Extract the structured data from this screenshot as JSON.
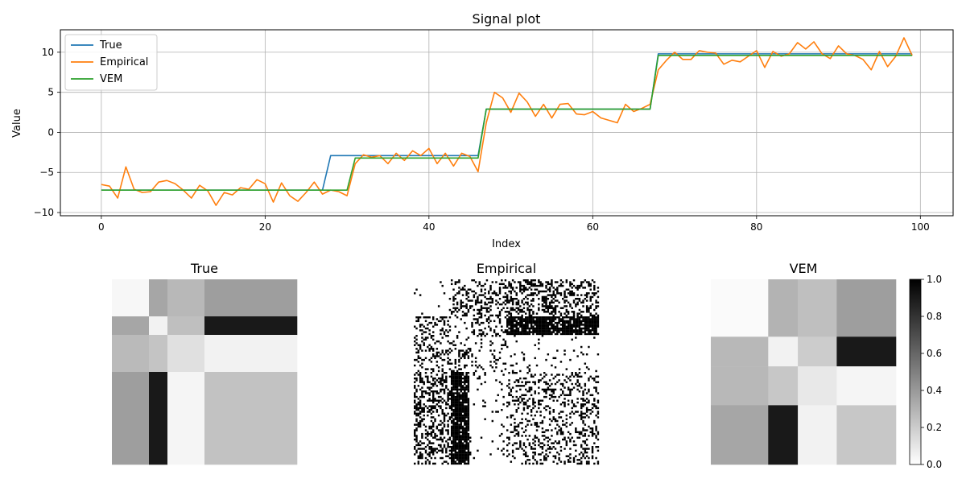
{
  "chart_data": [
    {
      "type": "line",
      "title": "Signal plot",
      "xlabel": "Index",
      "ylabel": "Value",
      "xlim": [
        -5,
        104
      ],
      "ylim": [
        -10.4,
        12.8
      ],
      "xticks": [
        0,
        20,
        40,
        60,
        80,
        100
      ],
      "yticks": [
        -10,
        -5,
        0,
        5,
        10
      ],
      "grid": true,
      "legend_position": "top-left",
      "x": [
        0,
        1,
        2,
        3,
        4,
        5,
        6,
        7,
        8,
        9,
        10,
        11,
        12,
        13,
        14,
        15,
        16,
        17,
        18,
        19,
        20,
        21,
        22,
        23,
        24,
        25,
        26,
        27,
        28,
        29,
        30,
        31,
        32,
        33,
        34,
        35,
        36,
        37,
        38,
        39,
        40,
        41,
        42,
        43,
        44,
        45,
        46,
        47,
        48,
        49,
        50,
        51,
        52,
        53,
        54,
        55,
        56,
        57,
        58,
        59,
        60,
        61,
        62,
        63,
        64,
        65,
        66,
        67,
        68,
        69,
        70,
        71,
        72,
        73,
        74,
        75,
        76,
        77,
        78,
        79,
        80,
        81,
        82,
        83,
        84,
        85,
        86,
        87,
        88,
        89,
        90,
        91,
        92,
        93,
        94,
        95,
        96,
        97,
        98,
        99
      ],
      "series": [
        {
          "name": "True",
          "color": "#1f77b4",
          "values": [
            -7.2,
            -7.2,
            -7.2,
            -7.2,
            -7.2,
            -7.2,
            -7.2,
            -7.2,
            -7.2,
            -7.2,
            -7.2,
            -7.2,
            -7.2,
            -7.2,
            -7.2,
            -7.2,
            -7.2,
            -7.2,
            -7.2,
            -7.2,
            -7.2,
            -7.2,
            -7.2,
            -7.2,
            -7.2,
            -7.2,
            -7.2,
            -7.2,
            -2.9,
            -2.9,
            -2.9,
            -2.9,
            -2.9,
            -2.9,
            -2.9,
            -2.9,
            -2.9,
            -2.9,
            -2.9,
            -2.9,
            -2.9,
            -2.9,
            -2.9,
            -2.9,
            -2.9,
            -2.9,
            -2.9,
            2.9,
            2.9,
            2.9,
            2.9,
            2.9,
            2.9,
            2.9,
            2.9,
            2.9,
            2.9,
            2.9,
            2.9,
            2.9,
            2.9,
            2.9,
            2.9,
            2.9,
            2.9,
            2.9,
            2.9,
            2.9,
            9.8,
            9.8,
            9.8,
            9.8,
            9.8,
            9.8,
            9.8,
            9.8,
            9.8,
            9.8,
            9.8,
            9.8,
            9.8,
            9.8,
            9.8,
            9.8,
            9.8,
            9.8,
            9.8,
            9.8,
            9.8,
            9.8,
            9.8,
            9.8,
            9.8,
            9.8,
            9.8,
            9.8,
            9.8,
            9.8,
            9.8,
            9.8
          ]
        },
        {
          "name": "Empirical",
          "color": "#ff7f0e",
          "values": [
            -6.5,
            -6.7,
            -8.2,
            -4.3,
            -7.1,
            -7.5,
            -7.4,
            -6.2,
            -6.0,
            -6.4,
            -7.2,
            -8.2,
            -6.6,
            -7.3,
            -9.1,
            -7.5,
            -7.8,
            -6.9,
            -7.1,
            -5.9,
            -6.4,
            -8.7,
            -6.3,
            -7.9,
            -8.6,
            -7.5,
            -6.2,
            -7.7,
            -7.2,
            -7.4,
            -7.9,
            -3.9,
            -2.8,
            -3.1,
            -2.9,
            -3.9,
            -2.6,
            -3.5,
            -2.3,
            -2.9,
            -2.0,
            -3.9,
            -2.6,
            -4.2,
            -2.6,
            -3.0,
            -4.9,
            1.2,
            5.0,
            4.3,
            2.5,
            4.9,
            3.8,
            2.0,
            3.5,
            1.8,
            3.5,
            3.6,
            2.3,
            2.2,
            2.6,
            1.8,
            1.5,
            1.2,
            3.5,
            2.6,
            3.0,
            3.5,
            7.8,
            9.0,
            10.0,
            9.1,
            9.1,
            10.2,
            10.0,
            9.9,
            8.5,
            9.0,
            8.8,
            9.5,
            10.2,
            8.1,
            10.1,
            9.5,
            9.8,
            11.2,
            10.4,
            11.3,
            9.8,
            9.2,
            10.8,
            9.8,
            9.6,
            9.1,
            7.8,
            10.1,
            8.2,
            9.5,
            11.8,
            9.6
          ]
        },
        {
          "name": "VEM",
          "color": "#2ca02c",
          "values": [
            -7.2,
            -7.2,
            -7.2,
            -7.2,
            -7.2,
            -7.2,
            -7.2,
            -7.2,
            -7.2,
            -7.2,
            -7.2,
            -7.2,
            -7.2,
            -7.2,
            -7.2,
            -7.2,
            -7.2,
            -7.2,
            -7.2,
            -7.2,
            -7.2,
            -7.2,
            -7.2,
            -7.2,
            -7.2,
            -7.2,
            -7.2,
            -7.2,
            -7.2,
            -7.2,
            -7.2,
            -3.2,
            -3.2,
            -3.2,
            -3.2,
            -3.2,
            -3.2,
            -3.2,
            -3.2,
            -3.2,
            -3.2,
            -3.2,
            -3.2,
            -3.2,
            -3.2,
            -3.2,
            -3.2,
            2.9,
            2.9,
            2.9,
            2.9,
            2.9,
            2.9,
            2.9,
            2.9,
            2.9,
            2.9,
            2.9,
            2.9,
            2.9,
            2.9,
            2.9,
            2.9,
            2.9,
            2.9,
            2.9,
            2.9,
            2.9,
            9.6,
            9.6,
            9.6,
            9.6,
            9.6,
            9.6,
            9.6,
            9.6,
            9.6,
            9.6,
            9.6,
            9.6,
            9.6,
            9.6,
            9.6,
            9.6,
            9.6,
            9.6,
            9.6,
            9.6,
            9.6,
            9.6,
            9.6,
            9.6,
            9.6,
            9.6,
            9.6,
            9.6,
            9.6,
            9.6,
            9.6,
            9.6
          ]
        }
      ]
    },
    {
      "type": "heatmap",
      "title": "True",
      "colormap": "Greys",
      "bins": [
        0,
        20,
        30,
        50,
        100
      ],
      "values": [
        [
          0.03,
          0.35,
          0.28,
          0.38
        ],
        [
          0.35,
          0.05,
          0.25,
          0.9
        ],
        [
          0.27,
          0.23,
          0.12,
          0.05
        ],
        [
          0.38,
          0.9,
          0.04,
          0.24
        ]
      ]
    },
    {
      "type": "heatmap",
      "title": "Empirical",
      "colormap": "Greys",
      "binary": true,
      "n": 100
    },
    {
      "type": "heatmap",
      "title": "VEM",
      "colormap": "Greys",
      "bins": [
        0,
        31,
        47,
        68,
        100
      ],
      "values": [
        [
          0.02,
          0.3,
          0.25,
          0.38
        ],
        [
          0.28,
          0.05,
          0.2,
          0.9
        ],
        [
          0.28,
          0.22,
          0.09,
          0.04
        ],
        [
          0.35,
          0.9,
          0.05,
          0.22
        ]
      ],
      "colorbar": {
        "min": 0.0,
        "max": 1.0,
        "ticks": [
          "0.0",
          "0.2",
          "0.4",
          "0.6",
          "0.8",
          "1.0"
        ]
      }
    }
  ]
}
